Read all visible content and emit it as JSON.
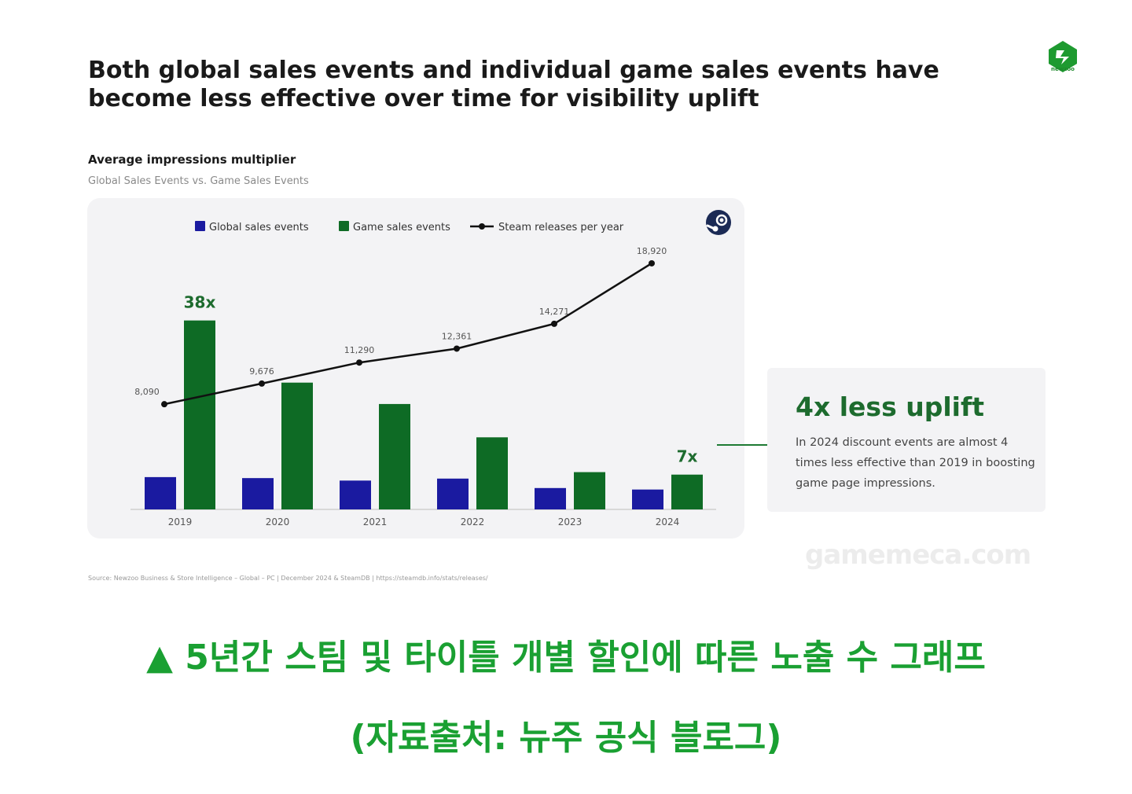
{
  "header": {
    "title": "Both global sales events and individual game sales events have become less effective over time for visibility uplift",
    "logo_text": "newzoo"
  },
  "chart_header": {
    "title": "Average impressions multiplier",
    "subtitle": "Global Sales Events vs. Game Sales Events"
  },
  "chart_data": {
    "type": "bar",
    "categories": [
      "2019",
      "2020",
      "2021",
      "2022",
      "2023",
      "2024"
    ],
    "series": [
      {
        "name": "Global sales events",
        "values": [
          6.5,
          6.3,
          5.8,
          6.2,
          4.3,
          4.0
        ],
        "color": "#1a1aa0"
      },
      {
        "name": "Game sales events",
        "values": [
          38,
          25.5,
          21.2,
          14.5,
          7.5,
          7
        ],
        "color": "#0e6b25"
      },
      {
        "name": "Steam releases per year",
        "type": "line",
        "values": [
          8090,
          9676,
          11290,
          12361,
          14271,
          18920
        ],
        "color": "#111111",
        "axis": "secondary"
      }
    ],
    "line_labels": [
      "8,090",
      "9,676",
      "11,290",
      "12,361",
      "14,271",
      "18,920"
    ],
    "bar_annotations": [
      {
        "category": "2019",
        "series": "Game sales events",
        "text": "38x"
      },
      {
        "category": "2024",
        "series": "Game sales events",
        "text": "7x"
      }
    ],
    "legend": [
      "Global sales events",
      "Game sales events",
      "Steam releases per year"
    ],
    "legend_position": "top",
    "ylim": [
      0,
      40
    ],
    "y2lim": [
      0,
      22000
    ],
    "grid": false,
    "xlabel": "",
    "ylabel": ""
  },
  "callout": {
    "title": "4x less uplift",
    "text": "In 2024 discount events are almost 4 times less effective than 2019 in boosting game page impressions."
  },
  "watermark": "gamemeca.com",
  "source": "Source: Newzoo Business & Store Intelligence – Global – PC | December 2024 & SteamDB | https://steamdb.info/stats/releases/",
  "caption": {
    "line1": "▲ 5년간 스팀 및 타이틀 개별 할인에 따른 노출 수 그래프",
    "line2": "(자료출처: 뉴주 공식 블로그)"
  },
  "icons": {
    "logo": "newzoo-logo-icon",
    "steam": "steam-icon"
  }
}
